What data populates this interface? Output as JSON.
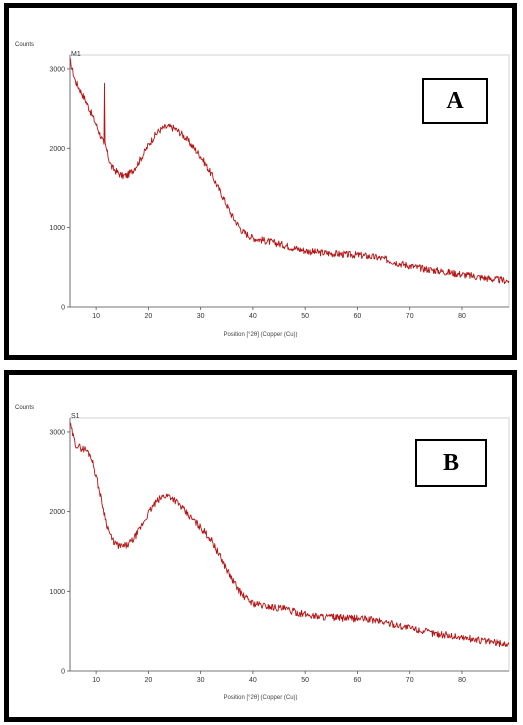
{
  "chart_data": [
    {
      "type": "line",
      "panel_label": "A",
      "sample_name": "M1",
      "ylabel": "Counts",
      "xlabel": "Position [°2θ] (Copper (Cu))",
      "xlim": [
        5,
        89
      ],
      "ylim": [
        0,
        3100
      ],
      "x_ticks": [
        10,
        20,
        30,
        40,
        50,
        60,
        70,
        80
      ],
      "y_ticks": [
        0,
        1000,
        2000,
        3000
      ],
      "grid": false,
      "line_color": "#b51414",
      "series": [
        {
          "x": [
            5,
            6,
            8,
            10,
            11.5,
            11.6,
            11.7,
            12.5,
            13,
            14,
            15,
            16,
            17,
            18,
            19,
            20,
            21,
            22,
            23,
            24,
            25,
            26,
            27,
            28,
            29,
            30,
            32,
            34,
            36,
            38,
            40,
            42,
            44,
            46,
            48,
            50,
            52,
            54,
            56,
            58,
            60,
            62,
            64,
            66,
            68,
            70,
            72,
            74,
            76,
            78,
            80,
            82,
            84,
            86,
            88,
            89
          ],
          "y": [
            3100,
            2850,
            2600,
            2300,
            2050,
            2820,
            2050,
            1850,
            1760,
            1700,
            1650,
            1660,
            1720,
            1810,
            1920,
            2040,
            2140,
            2220,
            2260,
            2270,
            2250,
            2200,
            2140,
            2060,
            1980,
            1900,
            1680,
            1420,
            1150,
            950,
            870,
            840,
            810,
            780,
            740,
            710,
            690,
            680,
            670,
            660,
            655,
            640,
            620,
            590,
            550,
            520,
            490,
            470,
            450,
            430,
            410,
            390,
            370,
            350,
            335,
            330
          ]
        }
      ]
    },
    {
      "type": "line",
      "panel_label": "B",
      "sample_name": "S1",
      "ylabel": "Counts",
      "xlabel": "Position [°2θ] (Copper (Cu))",
      "xlim": [
        5,
        89
      ],
      "ylim": [
        0,
        3100
      ],
      "x_ticks": [
        10,
        20,
        30,
        40,
        50,
        60,
        70,
        80
      ],
      "y_ticks": [
        0,
        1000,
        2000,
        3000
      ],
      "grid": false,
      "line_color": "#b51414",
      "series": [
        {
          "x": [
            5,
            6,
            7,
            8,
            9,
            10,
            11,
            12,
            13,
            14,
            15,
            16,
            17,
            18,
            19,
            20,
            21,
            22,
            23,
            24,
            25,
            26,
            27,
            28,
            29,
            30,
            32,
            34,
            36,
            38,
            40,
            42,
            44,
            46,
            48,
            50,
            52,
            54,
            56,
            58,
            60,
            62,
            64,
            66,
            68,
            70,
            72,
            74,
            76,
            78,
            80,
            82,
            84,
            86,
            88,
            89
          ],
          "y": [
            3100,
            2850,
            2800,
            2780,
            2700,
            2450,
            2150,
            1850,
            1650,
            1580,
            1560,
            1580,
            1640,
            1740,
            1860,
            1980,
            2080,
            2150,
            2200,
            2200,
            2150,
            2080,
            2000,
            1930,
            1870,
            1800,
            1650,
            1400,
            1150,
            950,
            850,
            820,
            800,
            780,
            740,
            710,
            690,
            680,
            670,
            660,
            660,
            650,
            630,
            600,
            570,
            540,
            510,
            480,
            460,
            440,
            420,
            400,
            380,
            360,
            340,
            335
          ]
        }
      ]
    }
  ]
}
